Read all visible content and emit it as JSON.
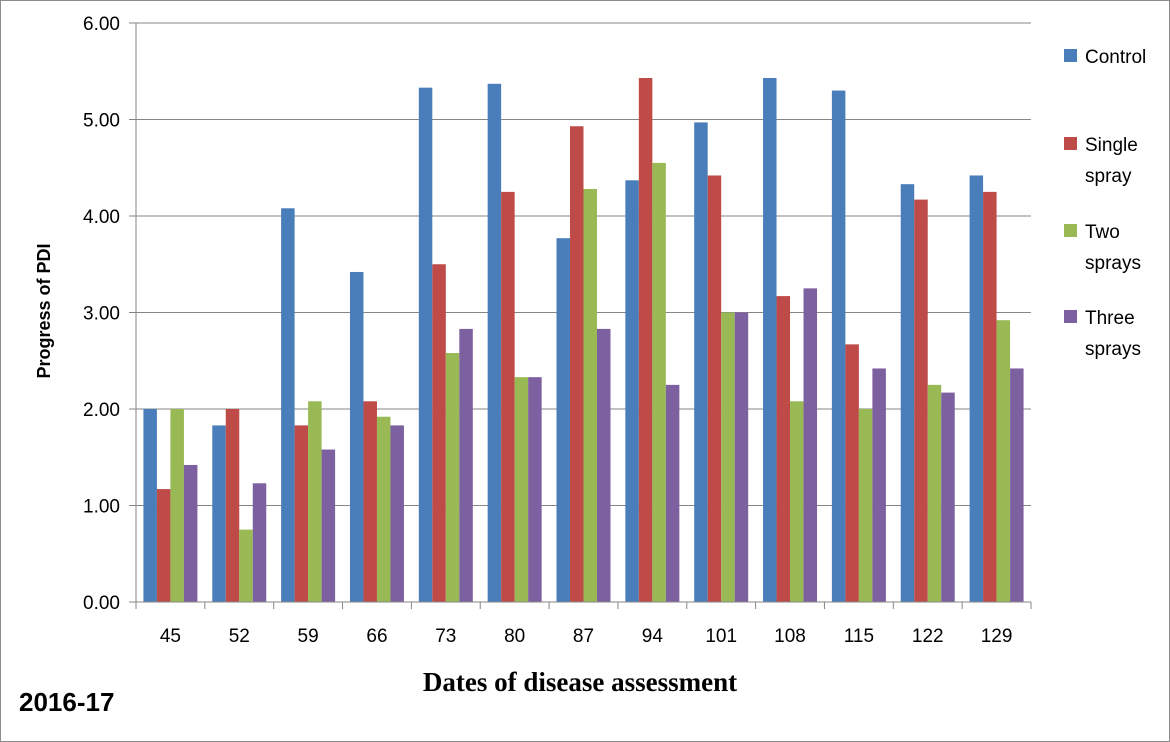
{
  "chart_data": {
    "type": "bar",
    "title": "",
    "xlabel": "Dates of disease assessment",
    "ylabel": "Progress of PDI",
    "categories": [
      "45",
      "52",
      "59",
      "66",
      "73",
      "80",
      "87",
      "94",
      "101",
      "108",
      "115",
      "122",
      "129"
    ],
    "ylim": [
      0,
      6
    ],
    "yticks": [
      "0.00",
      "1.00",
      "2.00",
      "3.00",
      "4.00",
      "5.00",
      "6.00"
    ],
    "grid": true,
    "legend_position": "right",
    "series": [
      {
        "name": [
          "Control"
        ],
        "color": "#4a7ebb",
        "values": [
          2.0,
          1.83,
          4.08,
          3.42,
          5.33,
          5.37,
          3.77,
          4.37,
          4.97,
          5.43,
          5.3,
          4.33,
          4.42
        ]
      },
      {
        "name": [
          "Single",
          "spray"
        ],
        "color": "#be4b48",
        "values": [
          1.17,
          2.0,
          1.83,
          2.08,
          3.5,
          4.25,
          4.93,
          5.43,
          4.42,
          3.17,
          2.67,
          4.17,
          4.25
        ]
      },
      {
        "name": [
          "Two",
          "sprays"
        ],
        "color": "#98b954",
        "values": [
          2.0,
          0.75,
          2.08,
          1.92,
          2.58,
          2.33,
          4.28,
          4.55,
          3.0,
          2.08,
          2.0,
          2.25,
          2.92
        ]
      },
      {
        "name": [
          "Three",
          "sprays"
        ],
        "color": "#7d60a0",
        "values": [
          1.42,
          1.23,
          1.58,
          1.83,
          2.83,
          2.33,
          2.83,
          2.25,
          3.0,
          3.25,
          2.42,
          2.17,
          2.42
        ]
      }
    ]
  },
  "season_label": "2016-17"
}
